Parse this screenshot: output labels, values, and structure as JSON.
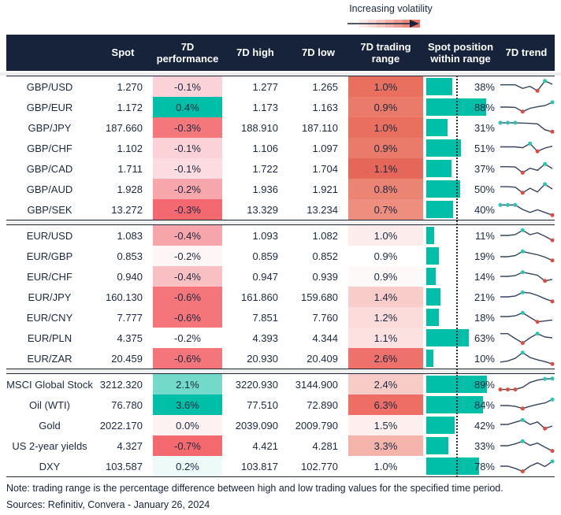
{
  "legend": {
    "label": "Increasing volatility"
  },
  "colors": {
    "header_bg": "#16233B",
    "text": "#1A2940",
    "bar_teal": "#00BFA9",
    "spark_line": "#34435E",
    "spark_high": "#2BC6B2",
    "spark_low": "#E04B40",
    "volatility_gradient_start": "#FFFFFF",
    "volatility_gradient_end": "#E97467"
  },
  "chart_data": {
    "type": "table",
    "columns": [
      "",
      "Spot",
      "7D performance",
      "7D high",
      "7D low",
      "7D trading range",
      "Spot position within range",
      "7D trend"
    ],
    "groups": [
      {
        "rows": [
          {
            "label": "GBP/USD",
            "spot": "1.270",
            "perf": "-0.1%",
            "perf_bg": "#FBD2D7",
            "high": "1.277",
            "low": "1.265",
            "range": "1.0%",
            "range_bg": "#E9705F",
            "pos": 38,
            "pos_label": "38%",
            "spark": {
              "pts": [
                0.62,
                0.62,
                0.62,
                0.38,
                0.52,
                0.22,
                0.88,
                0.66
              ],
              "hi": [
                6
              ],
              "lo": [
                5
              ]
            }
          },
          {
            "label": "GBP/EUR",
            "spot": "1.172",
            "perf": "0.4%",
            "perf_bg": "#00BFA9",
            "high": "1.173",
            "low": "1.163",
            "range": "0.9%",
            "range_bg": "#EA7A69",
            "pos": 88,
            "pos_label": "88%",
            "spark": {
              "pts": [
                0.5,
                0.5,
                0.48,
                0.2,
                0.42,
                0.52,
                0.6,
                0.82
              ],
              "hi": [
                7
              ],
              "lo": [
                3
              ]
            }
          },
          {
            "label": "GBP/JPY",
            "spot": "187.660",
            "perf": "-0.3%",
            "perf_bg": "#F4777B",
            "high": "188.910",
            "low": "187.110",
            "range": "1.0%",
            "range_bg": "#E9705F",
            "pos": 31,
            "pos_label": "31%",
            "spark": {
              "pts": [
                0.82,
                0.82,
                0.82,
                0.8,
                0.78,
                0.75,
                0.35,
                0.22
              ],
              "hi": [
                0,
                1,
                2
              ],
              "lo": [
                7
              ]
            }
          },
          {
            "label": "GBP/CHF",
            "spot": "1.102",
            "perf": "-0.1%",
            "perf_bg": "#FBD2D7",
            "high": "1.106",
            "low": "1.097",
            "range": "0.9%",
            "range_bg": "#EA7A69",
            "pos": 51,
            "pos_label": "51%",
            "spark": {
              "pts": [
                0.58,
                0.58,
                0.58,
                0.52,
                0.8,
                0.28,
                0.5,
                0.62
              ],
              "hi": [
                4
              ],
              "lo": [
                5
              ]
            }
          },
          {
            "label": "GBP/CAD",
            "spot": "1.711",
            "perf": "-0.1%",
            "perf_bg": "#FCDCE0",
            "high": "1.722",
            "low": "1.704",
            "range": "1.1%",
            "range_bg": "#E5675A",
            "pos": 37,
            "pos_label": "37%",
            "spark": {
              "pts": [
                0.62,
                0.62,
                0.6,
                0.22,
                0.52,
                0.38,
                0.8,
                0.5
              ],
              "hi": [
                6
              ],
              "lo": [
                3
              ]
            }
          },
          {
            "label": "GBP/AUD",
            "spot": "1.928",
            "perf": "-0.2%",
            "perf_bg": "#F7A6AB",
            "high": "1.936",
            "low": "1.921",
            "range": "0.8%",
            "range_bg": "#EC8473",
            "pos": 50,
            "pos_label": "50%",
            "spark": {
              "pts": [
                0.65,
                0.65,
                0.62,
                0.25,
                0.55,
                0.3,
                0.82,
                0.5
              ],
              "hi": [
                6
              ],
              "lo": [
                3
              ]
            }
          },
          {
            "label": "GBP/SEK",
            "spot": "13.272",
            "perf": "-0.3%",
            "perf_bg": "#F3696F",
            "high": "13.329",
            "low": "13.234",
            "range": "0.7%",
            "range_bg": "#EE8E7E",
            "pos": 40,
            "pos_label": "40%",
            "spark": {
              "pts": [
                0.8,
                0.8,
                0.8,
                0.5,
                0.3,
                0.48,
                0.3,
                0.12
              ],
              "hi": [
                0,
                1,
                2
              ],
              "lo": [
                7
              ]
            }
          }
        ]
      },
      {
        "rows": [
          {
            "label": "EUR/USD",
            "spot": "1.083",
            "perf": "-0.4%",
            "perf_bg": "#F6A6AA",
            "high": "1.093",
            "low": "1.082",
            "range": "1.0%",
            "range_bg": "#FCEDEC",
            "pos": 11,
            "pos_label": "11%",
            "spark": {
              "pts": [
                0.5,
                0.5,
                0.55,
                0.85,
                0.55,
                0.68,
                0.45,
                0.18
              ],
              "hi": [
                3
              ],
              "lo": [
                7
              ]
            }
          },
          {
            "label": "EUR/GBP",
            "spot": "0.853",
            "perf": "-0.2%",
            "perf_bg": "#FEF6F6",
            "high": "0.859",
            "low": "0.852",
            "range": "0.9%",
            "range_bg": "#FFFFFF",
            "pos": 19,
            "pos_label": "19%",
            "spark": {
              "pts": [
                0.45,
                0.45,
                0.52,
                0.8,
                0.68,
                0.58,
                0.42,
                0.2
              ],
              "hi": [
                3
              ],
              "lo": [
                7
              ]
            }
          },
          {
            "label": "EUR/CHF",
            "spot": "0.940",
            "perf": "-0.4%",
            "perf_bg": "#F9C0C4",
            "high": "0.947",
            "low": "0.939",
            "range": "0.9%",
            "range_bg": "#FEF9F9",
            "pos": 14,
            "pos_label": "14%",
            "spark": {
              "pts": [
                0.5,
                0.5,
                0.55,
                0.78,
                0.68,
                0.58,
                0.2,
                0.3
              ],
              "hi": [
                3
              ],
              "lo": [
                6
              ]
            }
          },
          {
            "label": "EUR/JPY",
            "spot": "160.130",
            "perf": "-0.6%",
            "perf_bg": "#F4757A",
            "high": "161.860",
            "low": "159.680",
            "range": "1.4%",
            "range_bg": "#F8CDC9",
            "pos": 21,
            "pos_label": "21%",
            "spark": {
              "pts": [
                0.5,
                0.5,
                0.56,
                0.8,
                0.76,
                0.6,
                0.38,
                0.2
              ],
              "hi": [
                3
              ],
              "lo": [
                7
              ]
            }
          },
          {
            "label": "EUR/CNY",
            "spot": "7.777",
            "perf": "-0.6%",
            "perf_bg": "#F4757A",
            "high": "7.851",
            "low": "7.760",
            "range": "1.2%",
            "range_bg": "#FBDCDA",
            "pos": 18,
            "pos_label": "18%",
            "spark": {
              "pts": [
                0.55,
                0.55,
                0.6,
                0.8,
                0.5,
                0.2,
                0.26,
                0.32
              ],
              "hi": [
                3
              ],
              "lo": [
                5
              ]
            }
          },
          {
            "label": "EUR/PLN",
            "spot": "4.375",
            "perf": "-0.2%",
            "perf_bg": "#FFFFFF",
            "high": "4.393",
            "low": "4.344",
            "range": "1.1%",
            "range_bg": "#FBE2E0",
            "pos": 63,
            "pos_label": "63%",
            "spark": {
              "pts": [
                0.78,
                0.78,
                0.45,
                0.15,
                0.5,
                0.78,
                0.55,
                0.5
              ],
              "hi": [
                5
              ],
              "lo": [
                3
              ]
            }
          },
          {
            "label": "EUR/ZAR",
            "spot": "20.459",
            "perf": "-0.6%",
            "perf_bg": "#F4757A",
            "high": "20.930",
            "low": "20.409",
            "range": "2.6%",
            "range_bg": "#EF716C",
            "pos": 10,
            "pos_label": "10%",
            "spark": {
              "pts": [
                0.25,
                0.32,
                0.5,
                0.88,
                0.55,
                0.4,
                0.28,
                0.12
              ],
              "hi": [
                3
              ],
              "lo": [
                7
              ]
            }
          }
        ]
      },
      {
        "rows": [
          {
            "label": "MSCI Global Stock",
            "spot": "3212.320",
            "perf": "2.1%",
            "perf_bg": "#73D9C8",
            "high": "3220.930",
            "low": "3144.900",
            "range": "2.4%",
            "range_bg": "#F8CCC6",
            "pos": 89,
            "pos_label": "89%",
            "spark": {
              "pts": [
                0.15,
                0.15,
                0.15,
                0.3,
                0.62,
                0.78,
                0.86,
                0.88
              ],
              "hi": [
                6,
                7
              ],
              "lo": [
                0,
                1,
                2
              ]
            }
          },
          {
            "label": "Oil (WTI)",
            "spot": "76.780",
            "perf": "3.6%",
            "perf_bg": "#00BFA9",
            "high": "77.510",
            "low": "72.890",
            "range": "6.3%",
            "range_bg": "#EE6E66",
            "pos": 84,
            "pos_label": "84%",
            "spark": {
              "pts": [
                0.45,
                0.45,
                0.4,
                0.25,
                0.4,
                0.52,
                0.62,
                0.85
              ],
              "hi": [
                7
              ],
              "lo": [
                3
              ]
            }
          },
          {
            "label": "Gold",
            "spot": "2022.170",
            "perf": "0.0%",
            "perf_bg": "#FDF2F2",
            "high": "2039.090",
            "low": "2009.790",
            "range": "1.5%",
            "range_bg": "#FDEFED",
            "pos": 42,
            "pos_label": "42%",
            "spark": {
              "pts": [
                0.55,
                0.55,
                0.7,
                0.85,
                0.55,
                0.72,
                0.28,
                0.45
              ],
              "hi": [
                3
              ],
              "lo": [
                6
              ]
            }
          },
          {
            "label": "US 2-year yields",
            "spot": "4.327",
            "perf": "-0.7%",
            "perf_bg": "#F4696E",
            "high": "4.421",
            "low": "4.281",
            "range": "3.3%",
            "range_bg": "#F5B4AB",
            "pos": 33,
            "pos_label": "33%",
            "spark": {
              "pts": [
                0.5,
                0.5,
                0.62,
                0.8,
                0.52,
                0.68,
                0.4,
                0.15
              ],
              "hi": [
                3
              ],
              "lo": [
                7
              ]
            }
          },
          {
            "label": "DXY",
            "spot": "103.587",
            "perf": "0.2%",
            "perf_bg": "#EDFAF7",
            "high": "103.817",
            "low": "102.770",
            "range": "1.0%",
            "range_bg": "#FFFFFF",
            "pos": 78,
            "pos_label": "78%",
            "spark": {
              "pts": [
                0.5,
                0.5,
                0.35,
                0.15,
                0.5,
                0.72,
                0.48,
                0.82
              ],
              "hi": [
                7
              ],
              "lo": [
                3
              ]
            }
          }
        ]
      }
    ],
    "note": "Note: trading range is the percentage difference between high and low trading values for the specified time period.",
    "sources": "Sources: Refinitiv, Convera - January 26, 2024"
  }
}
